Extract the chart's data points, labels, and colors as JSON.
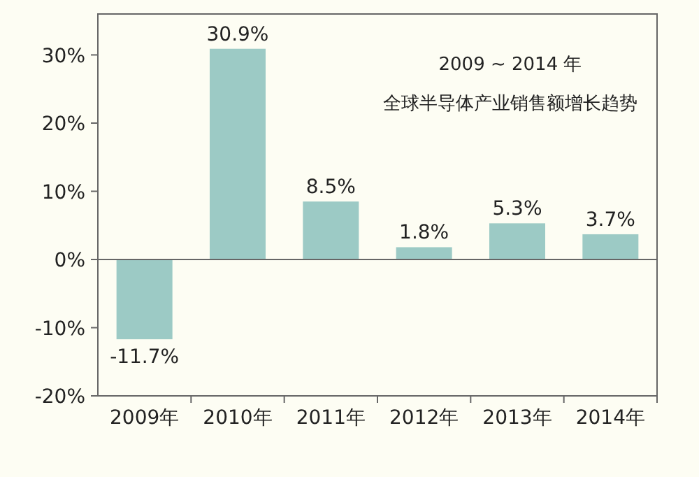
{
  "chart_data": {
    "type": "bar",
    "title": "2009 ~ 2014 年",
    "subtitle": "全球半导体产业销售额增长趋势",
    "categories": [
      "2009年",
      "2010年",
      "2011年",
      "2012年",
      "2013年",
      "2014年"
    ],
    "values": [
      -11.7,
      30.9,
      8.5,
      1.8,
      5.3,
      3.7
    ],
    "value_labels": [
      "-11.7%",
      "30.9%",
      "8.5%",
      "1.8%",
      "5.3%",
      "3.7%"
    ],
    "color": "#9ccac5",
    "ylim": [
      -20,
      36
    ],
    "yticks": [
      {
        "value": -20,
        "label": "-20%"
      },
      {
        "value": -10,
        "label": "-10%"
      },
      {
        "value": 0,
        "label": "0%"
      },
      {
        "value": 10,
        "label": "10%"
      },
      {
        "value": 20,
        "label": "20%"
      },
      {
        "value": 30,
        "label": "30%"
      }
    ]
  }
}
